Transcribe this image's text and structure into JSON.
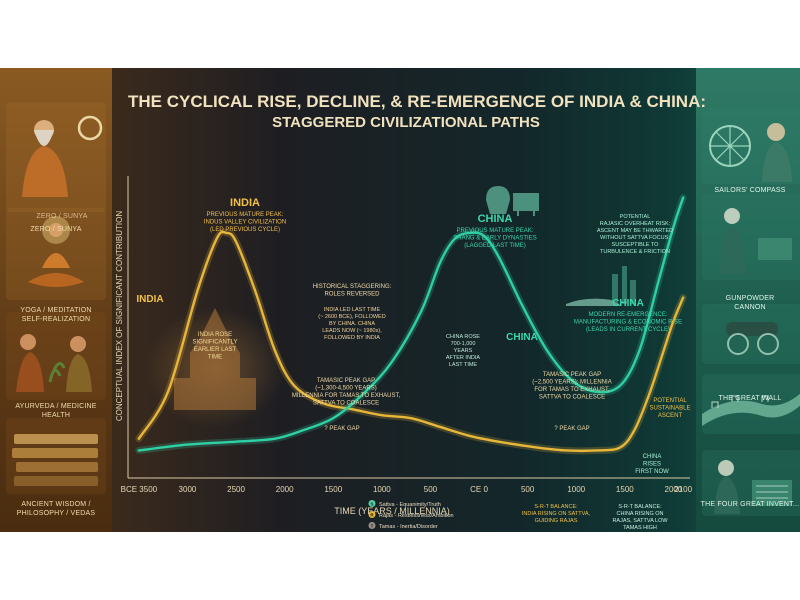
{
  "title": "THE CYCLICAL RISE, DECLINE, & RE-EMERGENCE OF INDIA & CHINA:",
  "subtitle": "STAGGERED CIVILIZATIONAL PATHS",
  "left_panel": [
    {
      "caption": "ZERO / SUNYA",
      "icon": "sage-icon"
    },
    {
      "caption": "YOGA / MEDITATION\nSELF-REALIZATION",
      "icon": "meditation-icon"
    },
    {
      "caption": "AYURVEDA / MEDICINE\nHEALTH",
      "icon": "herb-icon"
    },
    {
      "caption": "ANCIENT WISDOM /\nPHILOSOPHY / VEDAS",
      "icon": "scroll-icon"
    }
  ],
  "right_panel": [
    {
      "caption": "SAILORS' COMPASS",
      "icon": "compass-icon"
    },
    {
      "caption": "GUNPOWDER\nCANNON",
      "icon": "cannon-icon"
    },
    {
      "caption": "THE GREAT WALL",
      "icon": "wall-icon"
    },
    {
      "caption": "THE FOUR GREAT INVENT...",
      "icon": "workshop-icon"
    }
  ],
  "chart_data": {
    "type": "line",
    "title": "THE CYCLICAL RISE, DECLINE, & RE-EMERGENCE OF INDIA & CHINA:",
    "subtitle": "STAGGERED CIVILIZATIONAL PATHS",
    "xlabel": "TIME (YEARS / MILLENNIA)",
    "ylabel": "CONCEPTUAL INDEX OF SIGNIFICANT CONTRIBUTION",
    "x_ticks": [
      "BCE 3500",
      "3000",
      "2500",
      "2000",
      "1500",
      "1000",
      "500",
      "CE 0",
      "500",
      "1000",
      "1500",
      "2000",
      "2100"
    ],
    "x_values": [
      -3500,
      -3000,
      -2500,
      -2000,
      -1500,
      -1000,
      -500,
      0,
      500,
      1000,
      1500,
      2000,
      2100
    ],
    "xlim": [
      -3550,
      2150
    ],
    "ylim": [
      0,
      100
    ],
    "series": [
      {
        "name": "INDIA",
        "color": "#e8b73a",
        "points": [
          [
            -3500,
            12
          ],
          [
            -3200,
            28
          ],
          [
            -2900,
            62
          ],
          [
            -2700,
            80
          ],
          [
            -2600,
            82
          ],
          [
            -2500,
            79
          ],
          [
            -2300,
            62
          ],
          [
            -2100,
            42
          ],
          [
            -1900,
            30
          ],
          [
            -1600,
            24
          ],
          [
            -1300,
            22
          ],
          [
            -1000,
            20
          ],
          [
            -700,
            19
          ],
          [
            -400,
            16
          ],
          [
            -100,
            13
          ],
          [
            200,
            11
          ],
          [
            600,
            9
          ],
          [
            900,
            8
          ],
          [
            1200,
            8
          ],
          [
            1450,
            9
          ],
          [
            1600,
            15
          ],
          [
            1750,
            27
          ],
          [
            1900,
            42
          ],
          [
            2000,
            52
          ],
          [
            2100,
            60
          ]
        ]
      },
      {
        "name": "CHINA",
        "color": "#2fd0a4",
        "points": [
          [
            -3500,
            8
          ],
          [
            -3000,
            10
          ],
          [
            -2500,
            11
          ],
          [
            -2100,
            12
          ],
          [
            -1800,
            15
          ],
          [
            -1500,
            19
          ],
          [
            -1200,
            27
          ],
          [
            -900,
            38
          ],
          [
            -600,
            55
          ],
          [
            -400,
            72
          ],
          [
            -250,
            80
          ],
          [
            -100,
            82
          ],
          [
            50,
            81
          ],
          [
            200,
            74
          ],
          [
            450,
            57
          ],
          [
            700,
            42
          ],
          [
            950,
            32
          ],
          [
            1200,
            28
          ],
          [
            1450,
            30
          ],
          [
            1650,
            42
          ],
          [
            1850,
            66
          ],
          [
            2000,
            84
          ],
          [
            2100,
            94
          ]
        ]
      }
    ],
    "annotations": [
      {
        "label": "INDIA",
        "lines": [
          "PREVIOUS MATURE PEAK:",
          "INDUS VALLEY CIVILIZATION",
          "(LED PREVIOUS CYCLE)"
        ]
      },
      {
        "label": "INDIA",
        "lines": []
      },
      {
        "label": "",
        "lines": [
          "INDIA ROSE",
          "SIGNIFICANTLY",
          "EARLIER LAST",
          "TIME"
        ]
      },
      {
        "label": "CHINA",
        "lines": [
          "PREVIOUS MATURE PEAK:",
          "SHANG & EARLY DYNASTIES",
          "(LAGGED LAST TIME)"
        ]
      },
      {
        "label": "CHINA",
        "lines": []
      },
      {
        "label": "",
        "lines": [
          "CHINA ROSE",
          "700-1,000",
          "YEARS",
          "AFTER INDIA",
          "LAST TIME"
        ]
      },
      {
        "label": "",
        "lines": [
          "HISTORICAL STAGGERING:",
          "ROLES REVERSED"
        ]
      },
      {
        "label": "",
        "lines": [
          "INDIA LED LAST TIME",
          "(~ 2600 BCE), FOLLOWED",
          "BY CHINA. CHINA",
          "LEADS NOW (~ 1980s),",
          "FOLLOWED BY INDIA"
        ]
      },
      {
        "label": "",
        "lines": [
          "TAMASIC PEAK GAP",
          "(~1,300-4,500 YEARS)",
          "MILLENNIA FOR TAMAS TO EXHAUST,",
          "SATTVA TO COALESCE"
        ]
      },
      {
        "label": "",
        "lines": [
          "? PEAK GAP"
        ]
      },
      {
        "label": "",
        "lines": [
          "POTENTIAL",
          "RAJASIC OVERHEAT RISK:",
          "ASCENT MAY BE THWARTED",
          "WITHOUT SATTVA FOCUS:",
          "SUSCEPTIBLE TO",
          "TURBULENCE & FRICTION"
        ]
      },
      {
        "label": "CHINA",
        "lines": [
          "MODERN RE-EMERGENCE:",
          "MANUFACTURING & ECONOMIC RISE",
          "(LEADS IN CURRENT CYCLE)"
        ]
      },
      {
        "label": "",
        "lines": [
          "TAMASIC PEAK GAP",
          "(~2,500 YEARS): MILLENNIA",
          "FOR TAMAS TO EXHAUST,",
          "SATTVA TO COALESCE"
        ]
      },
      {
        "label": "",
        "lines": [
          "? PEAK GAP"
        ]
      },
      {
        "label": "",
        "lines": [
          "POTENTIAL",
          "SUSTAINABLE",
          "ASCENT"
        ]
      },
      {
        "label": "",
        "lines": [
          "CHINA",
          "RISES",
          "FIRST NOW"
        ]
      },
      {
        "label": "",
        "lines": [
          "S-R-T BALANCE:",
          "INDIA RISING ON SATTVA,",
          "GUIDING RAJAS"
        ]
      },
      {
        "label": "",
        "lines": [
          "S-R-T BALANCE:",
          "CHINA RISING ON",
          "RAJAS, SATTVA LOW",
          "TAMAS HIGH"
        ]
      }
    ],
    "legend": {
      "position": "bottom-center",
      "entries": [
        {
          "symbol": "S",
          "text": "Sattva - Equanimity/Truth",
          "color": "#4fd4a8"
        },
        {
          "symbol": "R",
          "text": "Rajas - Restlessness/Ambition",
          "color": "#e8b73a"
        },
        {
          "symbol": "T",
          "text": "Tamas - Inertia/Disorder",
          "color": "#9a8e86"
        }
      ]
    },
    "grid": false
  }
}
